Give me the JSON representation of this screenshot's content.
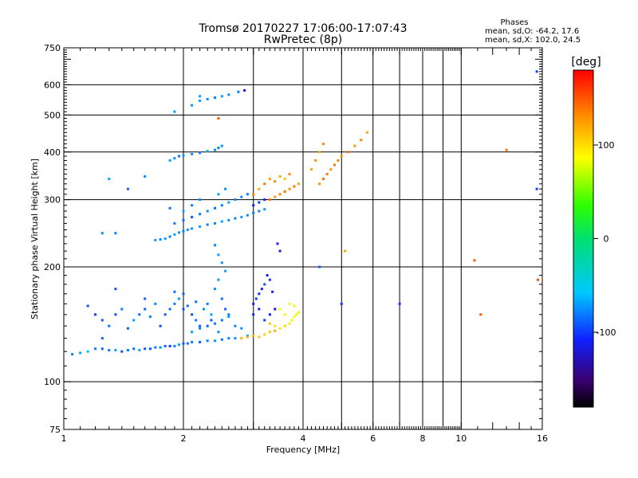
{
  "title_line1": "Tromsø 20170227 17:06:00-17:07:43",
  "title_line2": "RwPretec (8p)",
  "stats": {
    "header": "Phases",
    "line1": "mean, sd,O: -64.2, 17.6",
    "line2": "mean, sd,X: 102.0, 24.5"
  },
  "colorbar": {
    "unit": "[deg]",
    "ticks": [
      {
        "value": 100,
        "label": "100"
      },
      {
        "value": 0,
        "label": "0"
      },
      {
        "value": -100,
        "label": "-100"
      }
    ],
    "range": [
      -180,
      180
    ]
  },
  "chart_data": {
    "type": "scatter",
    "xlabel": "Frequency [MHz]",
    "ylabel": "Stationary phase Virtual Height [km]",
    "x_scale": "log",
    "y_scale": "log",
    "xlim": [
      1,
      16
    ],
    "ylim": [
      75,
      750
    ],
    "grid": true,
    "x_ticks_major": [
      {
        "value": 1,
        "label": "1"
      },
      {
        "value": 2,
        "label": "2"
      },
      {
        "value": 4,
        "label": "4"
      },
      {
        "value": 6,
        "label": "6"
      },
      {
        "value": 8,
        "label": "8"
      },
      {
        "value": 10,
        "label": "10"
      },
      {
        "value": 16,
        "label": "16"
      }
    ],
    "y_ticks_labeled": [
      {
        "value": 75,
        "label": "75"
      },
      {
        "value": 100,
        "label": "100"
      },
      {
        "value": 200,
        "label": "200"
      },
      {
        "value": 300,
        "label": "300"
      },
      {
        "value": 400,
        "label": "400"
      },
      {
        "value": 500,
        "label": "500"
      },
      {
        "value": 600,
        "label": "600"
      },
      {
        "value": 750,
        "label": "750"
      }
    ],
    "points": [
      [
        1.05,
        118,
        -80
      ],
      [
        1.1,
        119,
        -70
      ],
      [
        1.15,
        120,
        -60
      ],
      [
        1.2,
        122,
        -80
      ],
      [
        1.25,
        122,
        -90
      ],
      [
        1.3,
        121,
        -80
      ],
      [
        1.35,
        121,
        -70
      ],
      [
        1.4,
        120,
        -95
      ],
      [
        1.45,
        121,
        -80
      ],
      [
        1.5,
        122,
        -85
      ],
      [
        1.55,
        121,
        -70
      ],
      [
        1.6,
        122,
        -90
      ],
      [
        1.65,
        122,
        -95
      ],
      [
        1.7,
        123,
        -80
      ],
      [
        1.75,
        123,
        -75
      ],
      [
        1.8,
        124,
        -90
      ],
      [
        1.85,
        124,
        -100
      ],
      [
        1.9,
        124,
        -80
      ],
      [
        1.95,
        125,
        -70
      ],
      [
        2.0,
        126,
        -90
      ],
      [
        2.05,
        126,
        -85
      ],
      [
        2.1,
        127,
        -80
      ],
      [
        2.2,
        127,
        -90
      ],
      [
        2.3,
        128,
        -80
      ],
      [
        2.4,
        128,
        -70
      ],
      [
        2.5,
        129,
        -85
      ],
      [
        2.6,
        130,
        -80
      ],
      [
        2.7,
        130,
        -75
      ],
      [
        2.8,
        130,
        -70
      ],
      [
        2.9,
        132,
        -65
      ],
      [
        1.15,
        158,
        -95
      ],
      [
        1.2,
        150,
        -100
      ],
      [
        1.25,
        145,
        -90
      ],
      [
        1.3,
        140,
        -85
      ],
      [
        1.35,
        150,
        -95
      ],
      [
        1.4,
        155,
        -80
      ],
      [
        1.45,
        138,
        -90
      ],
      [
        1.5,
        145,
        -70
      ],
      [
        1.55,
        150,
        -85
      ],
      [
        1.6,
        155,
        -90
      ],
      [
        1.65,
        148,
        -80
      ],
      [
        1.7,
        160,
        -75
      ],
      [
        1.75,
        140,
        -95
      ],
      [
        1.8,
        150,
        -90
      ],
      [
        1.85,
        155,
        -85
      ],
      [
        1.9,
        160,
        -80
      ],
      [
        1.95,
        165,
        -70
      ],
      [
        2.0,
        170,
        -90
      ],
      [
        2.05,
        158,
        -85
      ],
      [
        2.1,
        150,
        -95
      ],
      [
        2.15,
        145,
        -80
      ],
      [
        2.2,
        140,
        -90
      ],
      [
        2.25,
        155,
        -75
      ],
      [
        2.3,
        160,
        -80
      ],
      [
        2.35,
        150,
        -70
      ],
      [
        2.4,
        175,
        -75
      ],
      [
        2.45,
        185,
        -70
      ],
      [
        2.5,
        165,
        -85
      ],
      [
        2.55,
        155,
        -90
      ],
      [
        2.6,
        150,
        -80
      ],
      [
        2.1,
        135,
        -70
      ],
      [
        2.2,
        138,
        -80
      ],
      [
        2.3,
        140,
        -90
      ],
      [
        2.4,
        142,
        -80
      ],
      [
        2.5,
        145,
        -85
      ],
      [
        2.6,
        148,
        -70
      ],
      [
        2.7,
        140,
        -80
      ],
      [
        2.8,
        138,
        -75
      ],
      [
        1.35,
        175,
        -95
      ],
      [
        1.6,
        165,
        -90
      ],
      [
        1.9,
        172,
        -85
      ],
      [
        2.0,
        155,
        -95
      ],
      [
        2.15,
        162,
        -85
      ],
      [
        2.35,
        145,
        -90
      ],
      [
        2.45,
        135,
        -75
      ],
      [
        2.55,
        195,
        -70
      ],
      [
        2.5,
        205,
        -75
      ],
      [
        2.45,
        215,
        -70
      ],
      [
        2.4,
        228,
        -75
      ],
      [
        1.25,
        130,
        -90
      ],
      [
        3.0,
        160,
        -110
      ],
      [
        3.05,
        165,
        -100
      ],
      [
        3.1,
        170,
        -105
      ],
      [
        3.15,
        175,
        -110
      ],
      [
        3.2,
        180,
        -95
      ],
      [
        3.3,
        185,
        -100
      ],
      [
        3.0,
        150,
        -110
      ],
      [
        3.1,
        155,
        -105
      ],
      [
        3.2,
        145,
        -100
      ],
      [
        3.3,
        150,
        -110
      ],
      [
        3.4,
        155,
        -120
      ],
      [
        3.25,
        190,
        -115
      ],
      [
        3.35,
        172,
        -110
      ],
      [
        3.45,
        230,
        -110
      ],
      [
        3.5,
        220,
        -120
      ],
      [
        2.8,
        130,
        110
      ],
      [
        2.9,
        131,
        120
      ],
      [
        3.0,
        132,
        115
      ],
      [
        3.1,
        131,
        110
      ],
      [
        3.2,
        133,
        105
      ],
      [
        3.3,
        135,
        110
      ],
      [
        3.4,
        136,
        120
      ],
      [
        3.5,
        138,
        100
      ],
      [
        3.6,
        140,
        105
      ],
      [
        3.7,
        142,
        95
      ],
      [
        3.75,
        145,
        80
      ],
      [
        3.8,
        148,
        85
      ],
      [
        3.85,
        150,
        95
      ],
      [
        3.9,
        152,
        80
      ],
      [
        3.6,
        150,
        90
      ],
      [
        3.5,
        155,
        85
      ],
      [
        3.7,
        160,
        90
      ],
      [
        3.8,
        158,
        80
      ],
      [
        3.4,
        140,
        100
      ],
      [
        3.3,
        142,
        110
      ],
      [
        1.7,
        235,
        -70
      ],
      [
        1.75,
        236,
        -75
      ],
      [
        1.8,
        237,
        -70
      ],
      [
        1.85,
        240,
        -80
      ],
      [
        1.9,
        243,
        -70
      ],
      [
        1.95,
        246,
        -75
      ],
      [
        2.0,
        248,
        -80
      ],
      [
        2.05,
        250,
        -70
      ],
      [
        2.1,
        252,
        -75
      ],
      [
        2.2,
        255,
        -70
      ],
      [
        2.3,
        258,
        -80
      ],
      [
        2.4,
        260,
        -75
      ],
      [
        2.5,
        263,
        -70
      ],
      [
        2.6,
        265,
        -75
      ],
      [
        2.7,
        268,
        -80
      ],
      [
        2.8,
        270,
        -70
      ],
      [
        2.9,
        273,
        -75
      ],
      [
        3.0,
        277,
        -80
      ],
      [
        3.1,
        280,
        -75
      ],
      [
        3.2,
        283,
        -70
      ],
      [
        1.9,
        260,
        -80
      ],
      [
        2.0,
        265,
        -85
      ],
      [
        2.1,
        270,
        -90
      ],
      [
        2.2,
        275,
        -80
      ],
      [
        2.3,
        280,
        -75
      ],
      [
        2.4,
        285,
        -85
      ],
      [
        2.5,
        290,
        -80
      ],
      [
        2.6,
        295,
        -70
      ],
      [
        2.7,
        300,
        -80
      ],
      [
        2.8,
        305,
        -75
      ],
      [
        2.9,
        310,
        -80
      ],
      [
        2.0,
        280,
        -70
      ],
      [
        2.1,
        290,
        -80
      ],
      [
        2.2,
        300,
        -75
      ],
      [
        1.85,
        285,
        -85
      ],
      [
        2.45,
        310,
        -70
      ],
      [
        2.55,
        320,
        -75
      ],
      [
        3.0,
        290,
        -110
      ],
      [
        3.1,
        295,
        -100
      ],
      [
        3.2,
        300,
        -110
      ],
      [
        3.0,
        310,
        130
      ],
      [
        3.1,
        320,
        120
      ],
      [
        3.2,
        330,
        140
      ],
      [
        3.3,
        340,
        125
      ],
      [
        3.4,
        335,
        135
      ],
      [
        3.5,
        345,
        120
      ],
      [
        3.6,
        340,
        110
      ],
      [
        3.7,
        350,
        130
      ],
      [
        3.3,
        300,
        140
      ],
      [
        3.4,
        305,
        130
      ],
      [
        3.5,
        310,
        135
      ],
      [
        3.6,
        315,
        140
      ],
      [
        3.7,
        320,
        130
      ],
      [
        3.8,
        325,
        140
      ],
      [
        3.9,
        330,
        120
      ],
      [
        4.4,
        330,
        130
      ],
      [
        4.5,
        340,
        140
      ],
      [
        4.6,
        350,
        135
      ],
      [
        4.7,
        360,
        130
      ],
      [
        4.8,
        370,
        140
      ],
      [
        4.9,
        380,
        135
      ],
      [
        5.0,
        390,
        130
      ],
      [
        5.2,
        400,
        140
      ],
      [
        5.4,
        415,
        130
      ],
      [
        5.6,
        430,
        135
      ],
      [
        5.8,
        450,
        120
      ],
      [
        4.2,
        360,
        125
      ],
      [
        4.3,
        380,
        130
      ],
      [
        4.4,
        400,
        120
      ],
      [
        4.5,
        420,
        130
      ],
      [
        1.85,
        380,
        -70
      ],
      [
        1.9,
        385,
        -75
      ],
      [
        1.95,
        390,
        -80
      ],
      [
        2.0,
        392,
        -70
      ],
      [
        2.1,
        395,
        -75
      ],
      [
        2.2,
        398,
        -80
      ],
      [
        2.3,
        402,
        -70
      ],
      [
        2.4,
        405,
        -75
      ],
      [
        2.45,
        410,
        -80
      ],
      [
        2.5,
        415,
        -75
      ],
      [
        1.9,
        510,
        -70
      ],
      [
        2.1,
        530,
        -75
      ],
      [
        2.2,
        545,
        -70
      ],
      [
        2.3,
        550,
        -75
      ],
      [
        2.4,
        555,
        -80
      ],
      [
        2.5,
        560,
        -70
      ],
      [
        2.6,
        565,
        -75
      ],
      [
        2.75,
        575,
        -80
      ],
      [
        2.85,
        580,
        -110
      ],
      [
        2.2,
        560,
        -70
      ],
      [
        1.3,
        340,
        -70
      ],
      [
        1.25,
        245,
        -75
      ],
      [
        1.35,
        245,
        -80
      ],
      [
        1.45,
        320,
        -90
      ],
      [
        1.6,
        345,
        -75
      ],
      [
        2.45,
        490,
        150
      ],
      [
        4.4,
        200,
        -90
      ],
      [
        5.1,
        220,
        120
      ],
      [
        5.0,
        160,
        -100
      ],
      [
        7.0,
        160,
        -100
      ],
      [
        10.8,
        208,
        150
      ],
      [
        11.2,
        150,
        150
      ],
      [
        13.0,
        405,
        140
      ],
      [
        15.5,
        320,
        -100
      ],
      [
        15.5,
        650,
        -100
      ],
      [
        15.6,
        185,
        150
      ]
    ]
  }
}
